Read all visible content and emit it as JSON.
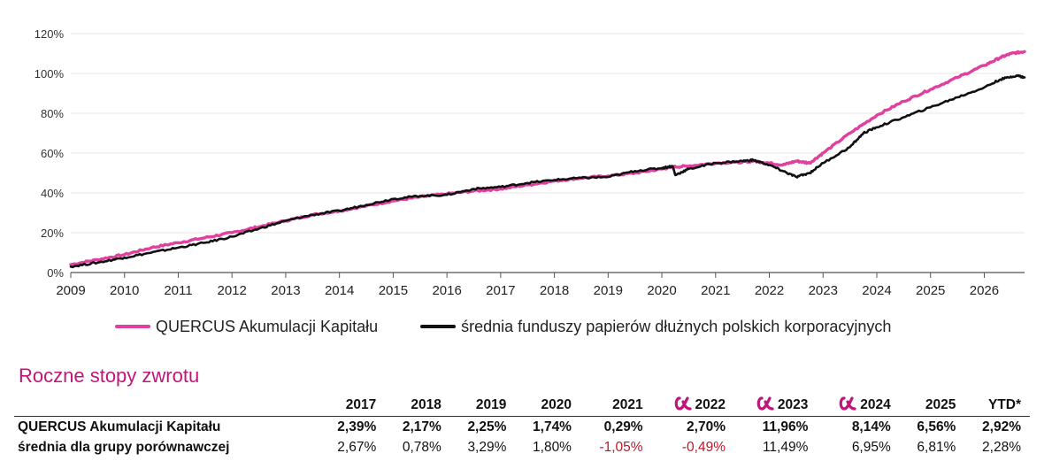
{
  "chart_data": {
    "type": "line",
    "title": "",
    "xlabel": "",
    "ylabel": "",
    "x_ticks": [
      "2009",
      "2010",
      "2011",
      "2012",
      "2013",
      "2014",
      "2015",
      "2016",
      "2017",
      "2018",
      "2019",
      "2020",
      "2021",
      "2022",
      "2023",
      "2024",
      "2025",
      "2026"
    ],
    "y_ticks": [
      "0%",
      "20%",
      "40%",
      "60%",
      "80%",
      "100%",
      "120%"
    ],
    "ylim": [
      0,
      120
    ],
    "xlim": [
      2009.0,
      2026.75
    ],
    "grid": "horizontal",
    "legend_position": "bottom",
    "series": [
      {
        "name": "QUERCUS Akumulacji Kapitału",
        "color": "#e0409e",
        "points": [
          [
            2009.0,
            4
          ],
          [
            2009.5,
            6.5
          ],
          [
            2010.0,
            9
          ],
          [
            2010.5,
            12.5
          ],
          [
            2011.0,
            15
          ],
          [
            2011.5,
            17.5
          ],
          [
            2012.0,
            20
          ],
          [
            2012.5,
            23
          ],
          [
            2013.0,
            26
          ],
          [
            2013.5,
            29
          ],
          [
            2014.0,
            31
          ],
          [
            2014.5,
            33.5
          ],
          [
            2015.0,
            36
          ],
          [
            2015.5,
            38
          ],
          [
            2016.0,
            39.5
          ],
          [
            2016.5,
            41
          ],
          [
            2017.0,
            42
          ],
          [
            2017.5,
            44
          ],
          [
            2018.0,
            46
          ],
          [
            2018.5,
            47.5
          ],
          [
            2019.0,
            48.5
          ],
          [
            2019.5,
            50
          ],
          [
            2020.0,
            52
          ],
          [
            2020.2,
            53
          ],
          [
            2020.5,
            53.5
          ],
          [
            2021.0,
            55
          ],
          [
            2021.5,
            55.5
          ],
          [
            2021.7,
            56
          ],
          [
            2022.0,
            55
          ],
          [
            2022.25,
            54
          ],
          [
            2022.5,
            56
          ],
          [
            2022.75,
            55
          ],
          [
            2023.0,
            60
          ],
          [
            2023.5,
            70
          ],
          [
            2024.0,
            79
          ],
          [
            2024.5,
            86
          ],
          [
            2025.0,
            92
          ],
          [
            2025.5,
            98
          ],
          [
            2026.0,
            104
          ],
          [
            2026.3,
            108
          ],
          [
            2026.5,
            110
          ],
          [
            2026.75,
            111
          ]
        ]
      },
      {
        "name": "średnia funduszy papierów dłużnych polskich korporacyjnych",
        "color": "#111111",
        "points": [
          [
            2009.0,
            3
          ],
          [
            2009.5,
            5
          ],
          [
            2010.0,
            7.5
          ],
          [
            2010.5,
            10
          ],
          [
            2011.0,
            12.5
          ],
          [
            2011.5,
            15
          ],
          [
            2012.0,
            18
          ],
          [
            2012.5,
            22
          ],
          [
            2013.0,
            26
          ],
          [
            2013.5,
            29
          ],
          [
            2014.0,
            31
          ],
          [
            2014.5,
            34
          ],
          [
            2015.0,
            37
          ],
          [
            2015.5,
            38.5
          ],
          [
            2016.0,
            39
          ],
          [
            2016.5,
            42
          ],
          [
            2017.0,
            43
          ],
          [
            2017.5,
            45
          ],
          [
            2018.0,
            46.5
          ],
          [
            2018.5,
            47.5
          ],
          [
            2019.0,
            48
          ],
          [
            2019.5,
            51
          ],
          [
            2020.0,
            52.5
          ],
          [
            2020.2,
            53.5
          ],
          [
            2020.25,
            49
          ],
          [
            2020.5,
            52
          ],
          [
            2021.0,
            55
          ],
          [
            2021.5,
            56
          ],
          [
            2021.7,
            56.5
          ],
          [
            2022.0,
            54
          ],
          [
            2022.25,
            51
          ],
          [
            2022.5,
            48
          ],
          [
            2022.75,
            50
          ],
          [
            2023.0,
            55
          ],
          [
            2023.5,
            63
          ],
          [
            2023.75,
            70
          ],
          [
            2024.0,
            73
          ],
          [
            2024.5,
            78
          ],
          [
            2025.0,
            83
          ],
          [
            2025.5,
            88
          ],
          [
            2026.0,
            93
          ],
          [
            2026.3,
            97
          ],
          [
            2026.6,
            99
          ],
          [
            2026.75,
            98
          ]
        ]
      }
    ]
  },
  "section_title": "Roczne stopy zwrotu",
  "table": {
    "years": [
      "2017",
      "2018",
      "2019",
      "2020",
      "2021",
      "2022",
      "2023",
      "2024",
      "2025",
      "YTD*"
    ],
    "alpha_icon_years": [
      5,
      6,
      7
    ],
    "alpha_icon": "alpha-logo-icon",
    "rows": [
      {
        "label": "QUERCUS Akumulacji Kapitału",
        "values": [
          "2,39%",
          "2,17%",
          "2,25%",
          "1,74%",
          "0,29%",
          "2,70%",
          "11,96%",
          "8,14%",
          "6,56%",
          "2,92%"
        ],
        "negative": []
      },
      {
        "label": "średnia dla grupy porównawczej",
        "values": [
          "2,67%",
          "0,78%",
          "3,29%",
          "1,80%",
          "-1,05%",
          "-0,49%",
          "11,49%",
          "6,95%",
          "6,81%",
          "2,28%"
        ],
        "negative": [
          4,
          5
        ]
      }
    ]
  },
  "colors": {
    "accent": "#c0167a",
    "quercus_line": "#e0409e",
    "average_line": "#111111",
    "negative": "#c0162b",
    "gridline": "#e6e6e6"
  }
}
